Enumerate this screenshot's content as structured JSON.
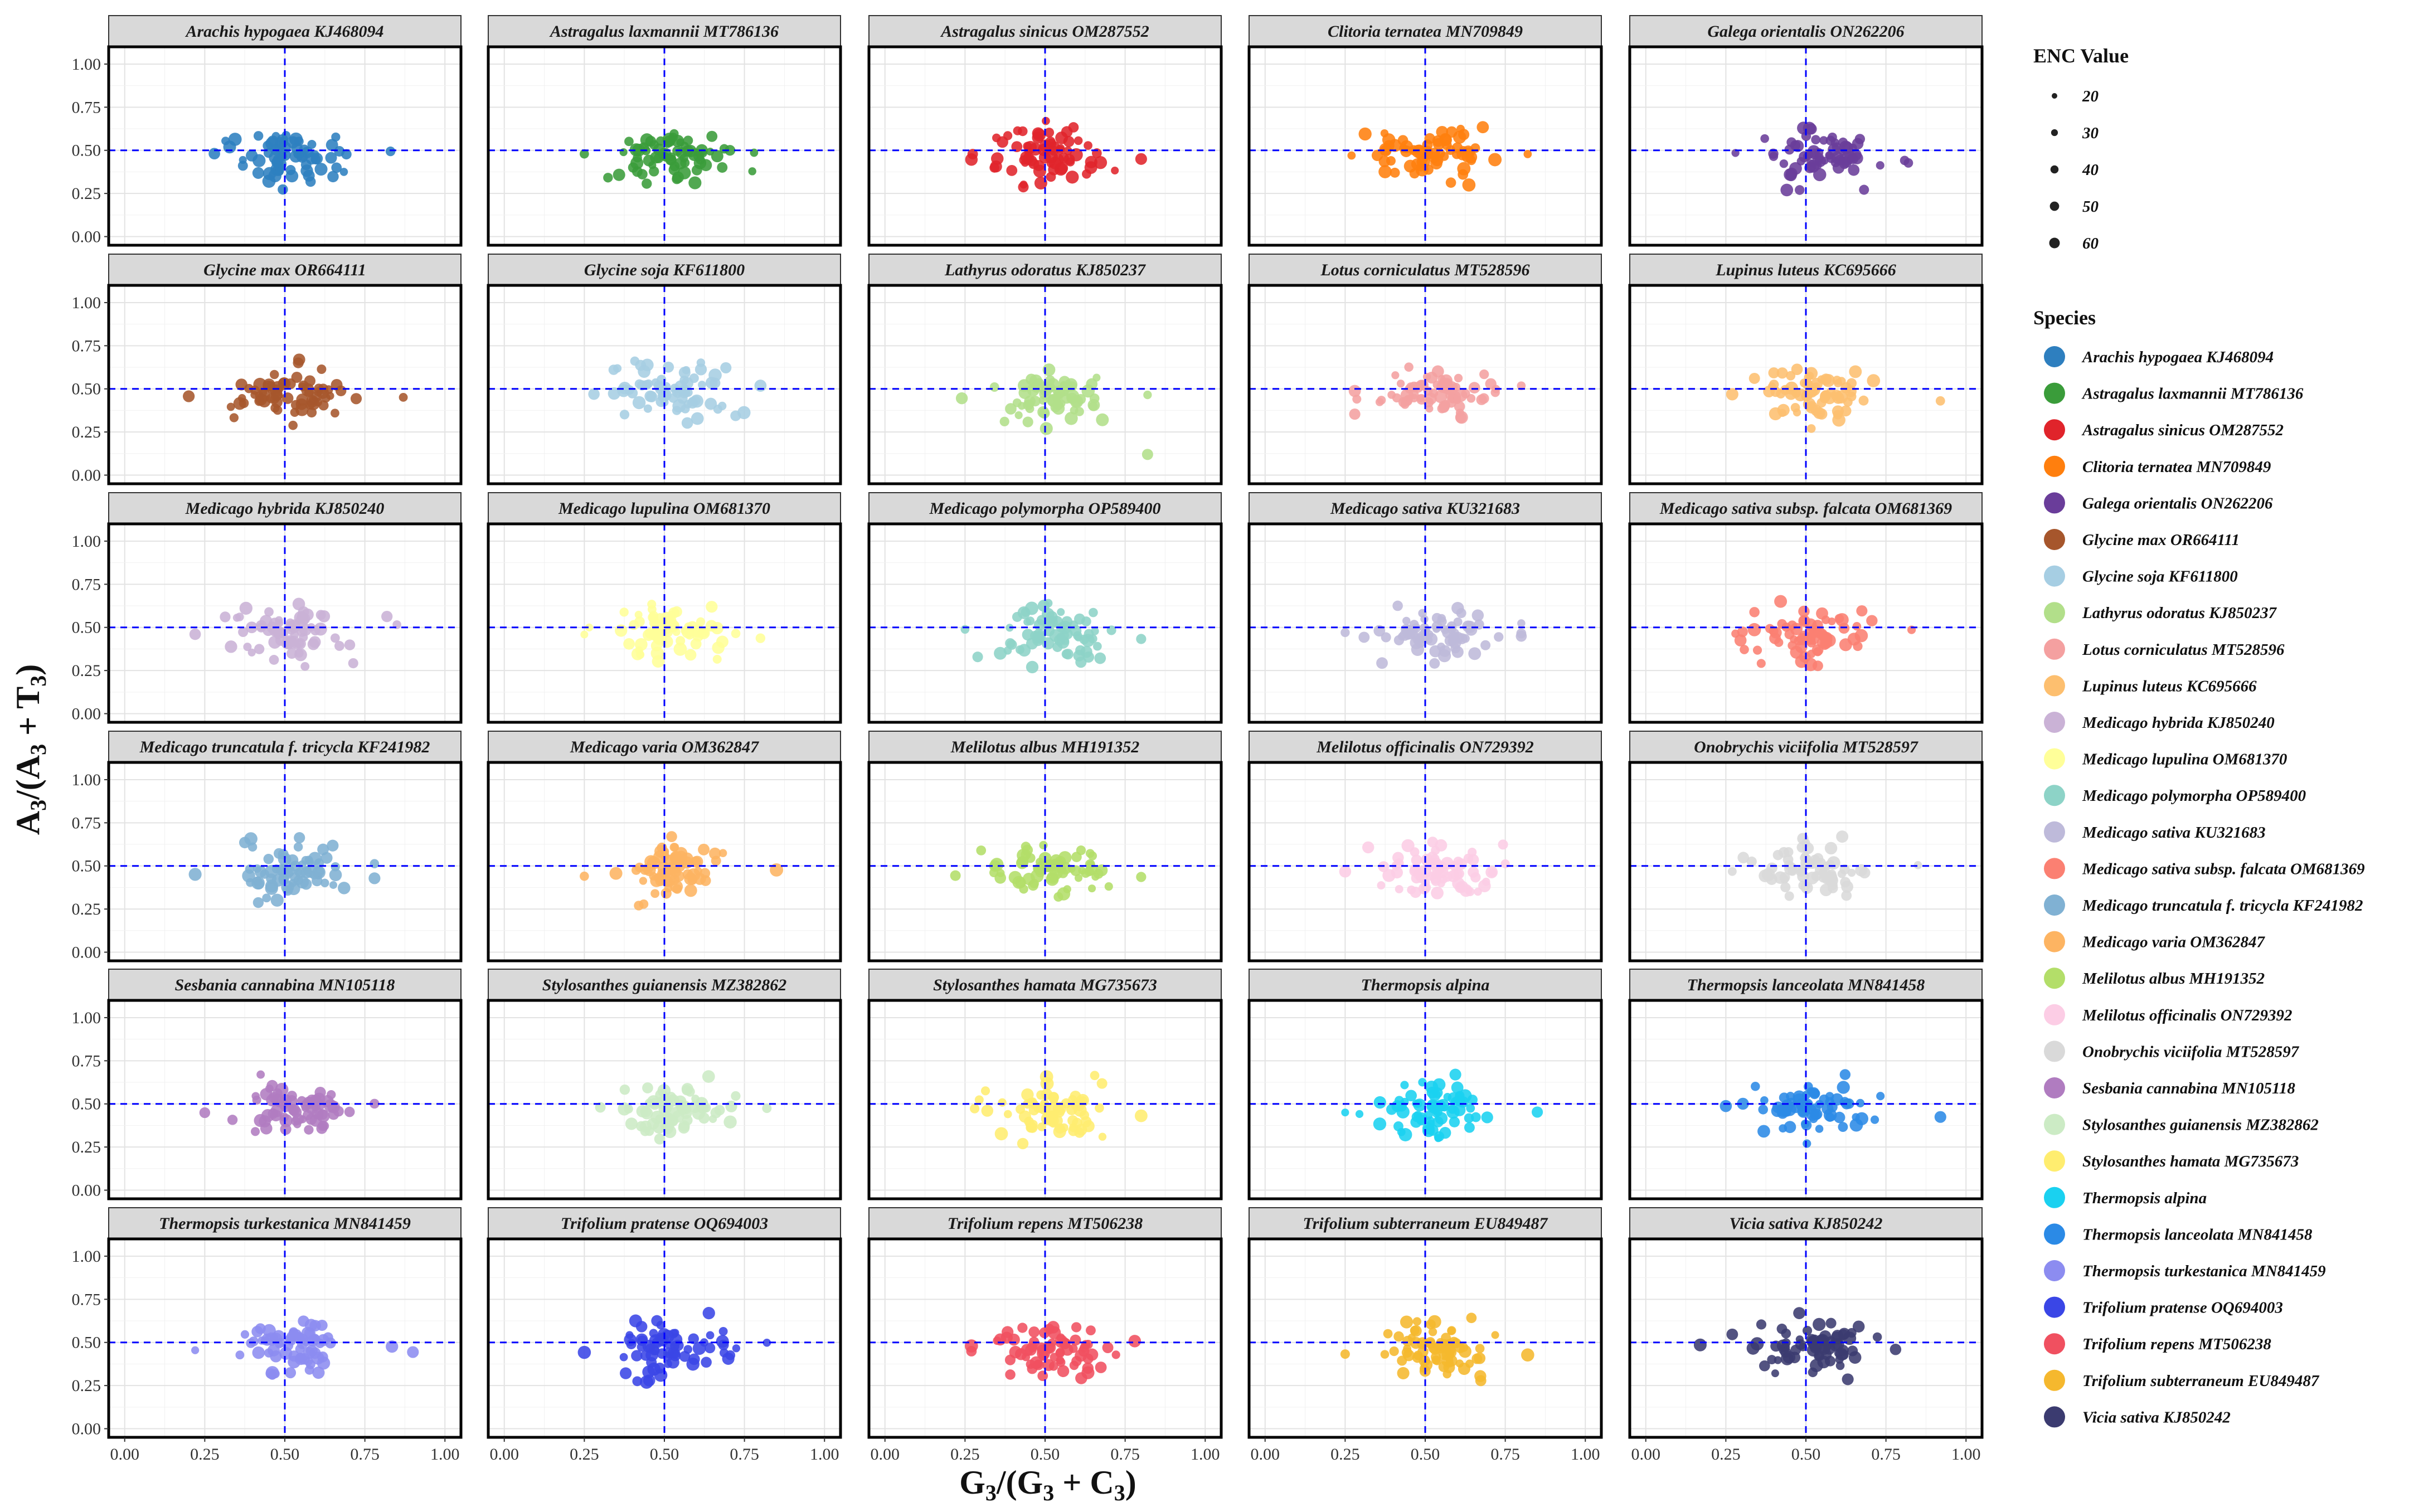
{
  "chart_data": {
    "type": "scatter",
    "facet_layout": {
      "rows": 6,
      "cols": 5
    },
    "xlabel": {
      "main": "G",
      "sub1": "3",
      "mid": "/(G",
      "sub2": "3",
      "mid2": " + C",
      "sub3": "3",
      "end": ")"
    },
    "ylabel": {
      "main": "A",
      "sub1": "3",
      "mid": "/(A",
      "sub2": "3",
      "mid2": " + T",
      "sub3": "3",
      "end": ")"
    },
    "xlim": [
      -0.05,
      1.05
    ],
    "ylim": [
      -0.05,
      1.1
    ],
    "x_ticks": [
      "0.00",
      "0.25",
      "0.50",
      "0.75",
      "1.00"
    ],
    "y_ticks": [
      "0.00",
      "0.25",
      "0.50",
      "0.75",
      "1.00"
    ],
    "x_tick_values": [
      0,
      0.25,
      0.5,
      0.75,
      1.0
    ],
    "y_tick_values": [
      0,
      0.25,
      0.5,
      0.75,
      1.0
    ],
    "reference_lines": {
      "x": 0.5,
      "y": 0.5,
      "color": "#0000ff",
      "style": "dashed"
    },
    "grid": true,
    "size_legend": {
      "title": "ENC Value",
      "values": [
        20,
        30,
        40,
        50,
        60
      ],
      "labels": [
        "20",
        "30",
        "40",
        "50",
        "60"
      ]
    },
    "color_legend_title": "Species",
    "points_per_panel_note": "approximate",
    "panels": [
      {
        "name": "Arachis hypogaea KJ468094",
        "color": "#2e7fbf",
        "center": [
          0.52,
          0.47
        ],
        "extent_x": [
          0.28,
          0.83
        ]
      },
      {
        "name": "Astragalus laxmannii MT786136",
        "color": "#3a9c3a",
        "center": [
          0.52,
          0.47
        ],
        "extent_x": [
          0.25,
          0.78
        ]
      },
      {
        "name": "Astragalus sinicus OM287552",
        "color": "#e0242b",
        "center": [
          0.52,
          0.46
        ],
        "extent_x": [
          0.27,
          0.8
        ]
      },
      {
        "name": "Clitoria ternatea MN709849",
        "color": "#ff7f0e",
        "center": [
          0.53,
          0.46
        ],
        "extent_x": [
          0.27,
          0.82
        ]
      },
      {
        "name": "Galega orientalis ON262206",
        "color": "#6a3d9a",
        "center": [
          0.53,
          0.47
        ],
        "extent_x": [
          0.28,
          0.82
        ]
      },
      {
        "name": "Glycine max OR664111",
        "color": "#a6562c",
        "center": [
          0.52,
          0.47
        ],
        "extent_x": [
          0.2,
          0.87
        ]
      },
      {
        "name": "Glycine soja KF611800",
        "color": "#a6cee3",
        "center": [
          0.52,
          0.47
        ],
        "extent_x": [
          0.28,
          0.8
        ]
      },
      {
        "name": "Lathyrus odoratus KJ850237",
        "color": "#b2df8a",
        "center": [
          0.52,
          0.47
        ],
        "extent_x": [
          0.24,
          0.82
        ]
      },
      {
        "name": "Lotus corniculatus MT528596",
        "color": "#f4a0a0",
        "center": [
          0.52,
          0.47
        ],
        "extent_x": [
          0.28,
          0.8
        ]
      },
      {
        "name": "Lupinus luteus KC695666",
        "color": "#fdbf6f",
        "center": [
          0.53,
          0.47
        ],
        "extent_x": [
          0.27,
          0.92
        ]
      },
      {
        "name": "Medicago hybrida KJ850240",
        "color": "#cab2d6",
        "center": [
          0.52,
          0.47
        ],
        "extent_x": [
          0.22,
          0.85
        ]
      },
      {
        "name": "Medicago lupulina OM681370",
        "color": "#ffff99",
        "center": [
          0.52,
          0.47
        ],
        "extent_x": [
          0.25,
          0.8
        ]
      },
      {
        "name": "Medicago polymorpha OP589400",
        "color": "#8dd3c7",
        "center": [
          0.53,
          0.46
        ],
        "extent_x": [
          0.25,
          0.8
        ]
      },
      {
        "name": "Medicago sativa KU321683",
        "color": "#bebada",
        "center": [
          0.53,
          0.47
        ],
        "extent_x": [
          0.25,
          0.8
        ]
      },
      {
        "name": "Medicago sativa subsp. falcata OM681369",
        "color": "#fb8072",
        "center": [
          0.52,
          0.47
        ],
        "extent_x": [
          0.28,
          0.83
        ]
      },
      {
        "name": "Medicago truncatula f. tricycla KF241982",
        "color": "#80b1d3",
        "center": [
          0.52,
          0.47
        ],
        "extent_x": [
          0.22,
          0.78
        ]
      },
      {
        "name": "Medicago varia OM362847",
        "color": "#fdb462",
        "center": [
          0.52,
          0.47
        ],
        "extent_x": [
          0.25,
          0.85
        ]
      },
      {
        "name": "Melilotus albus MH191352",
        "color": "#b3de69",
        "center": [
          0.52,
          0.47
        ],
        "extent_x": [
          0.22,
          0.8
        ]
      },
      {
        "name": "Melilotus officinalis ON729392",
        "color": "#fccde5",
        "center": [
          0.53,
          0.47
        ],
        "extent_x": [
          0.25,
          0.75
        ]
      },
      {
        "name": "Onobrychis viciifolia MT528597",
        "color": "#d9d9d9",
        "center": [
          0.53,
          0.47
        ],
        "extent_x": [
          0.27,
          0.85
        ]
      },
      {
        "name": "Sesbania cannabina MN105118",
        "color": "#b07cc0",
        "center": [
          0.52,
          0.47
        ],
        "extent_x": [
          0.25,
          0.78
        ]
      },
      {
        "name": "Stylosanthes guianensis MZ382862",
        "color": "#ccebc5",
        "center": [
          0.52,
          0.47
        ],
        "extent_x": [
          0.3,
          0.82
        ]
      },
      {
        "name": "Stylosanthes hamata MG735673",
        "color": "#ffed6f",
        "center": [
          0.52,
          0.46
        ],
        "extent_x": [
          0.28,
          0.8
        ]
      },
      {
        "name": "Thermopsis alpina",
        "color": "#1ad1f0",
        "center": [
          0.52,
          0.47
        ],
        "extent_x": [
          0.25,
          0.85
        ]
      },
      {
        "name": "Thermopsis lanceolata MN841458",
        "color": "#2b8ae6",
        "center": [
          0.52,
          0.47
        ],
        "extent_x": [
          0.25,
          0.92
        ]
      },
      {
        "name": "Thermopsis turkestanica MN841459",
        "color": "#8c8cf0",
        "center": [
          0.53,
          0.47
        ],
        "extent_x": [
          0.22,
          0.9
        ]
      },
      {
        "name": "Trifolium pratense OQ694003",
        "color": "#3a46e6",
        "center": [
          0.52,
          0.46
        ],
        "extent_x": [
          0.25,
          0.82
        ]
      },
      {
        "name": "Trifolium repens MT506238",
        "color": "#f05060",
        "center": [
          0.52,
          0.46
        ],
        "extent_x": [
          0.27,
          0.78
        ]
      },
      {
        "name": "Trifolium subterraneum EU849487",
        "color": "#f5b82e",
        "center": [
          0.52,
          0.46
        ],
        "extent_x": [
          0.25,
          0.82
        ]
      },
      {
        "name": "Vicia sativa KJ850242",
        "color": "#3b3b70",
        "center": [
          0.52,
          0.48
        ],
        "extent_x": [
          0.17,
          0.78
        ]
      }
    ]
  }
}
